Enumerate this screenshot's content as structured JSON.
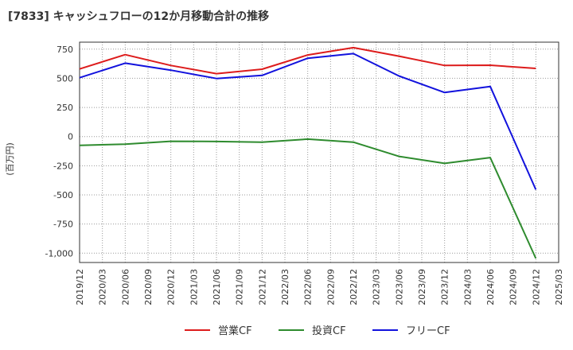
{
  "page": {
    "title": "[7833]  キャッシュフローの12か月移動合計の推移"
  },
  "chart_data": {
    "type": "line",
    "title": "[7833]  キャッシュフローの12か月移動合計の推移",
    "ylabel": "(百万円)",
    "xlabel": "",
    "ylim": [
      -1080,
      810
    ],
    "grid": true,
    "legend_position": "bottom",
    "y_ticks": [
      750,
      500,
      250,
      0,
      -250,
      -500,
      -750,
      -1000
    ],
    "y_tick_labels": [
      "750",
      "500",
      "250",
      "0",
      "-250",
      "-500",
      "-750",
      "-1,000"
    ],
    "x_tick_labels": [
      "2019/12",
      "2020/03",
      "2020/06",
      "2020/09",
      "2020/12",
      "2021/03",
      "2021/06",
      "2021/09",
      "2021/12",
      "2022/03",
      "2022/06",
      "2022/09",
      "2022/12",
      "2023/03",
      "2023/06",
      "2023/09",
      "2023/12",
      "2024/03",
      "2024/06",
      "2024/09",
      "2024/12",
      "2025/03"
    ],
    "x_points": [
      "2019/12",
      "2020/06",
      "2020/12",
      "2021/06",
      "2021/12",
      "2022/06",
      "2022/12",
      "2023/06",
      "2023/12",
      "2024/06",
      "2024/12"
    ],
    "series": [
      {
        "name": "営業CF",
        "color": "#dd1c1c",
        "values": [
          580,
          703,
          610,
          540,
          578,
          700,
          763,
          690,
          610,
          612,
          585
        ]
      },
      {
        "name": "投資CF",
        "color": "#2e8b2e",
        "values": [
          -75,
          -65,
          -40,
          -42,
          -48,
          -22,
          -48,
          -170,
          -230,
          -180,
          -1045
        ]
      },
      {
        "name": "フリーCF",
        "color": "#1212dd",
        "values": [
          505,
          630,
          570,
          498,
          525,
          672,
          712,
          520,
          378,
          430,
          -455
        ]
      }
    ]
  }
}
